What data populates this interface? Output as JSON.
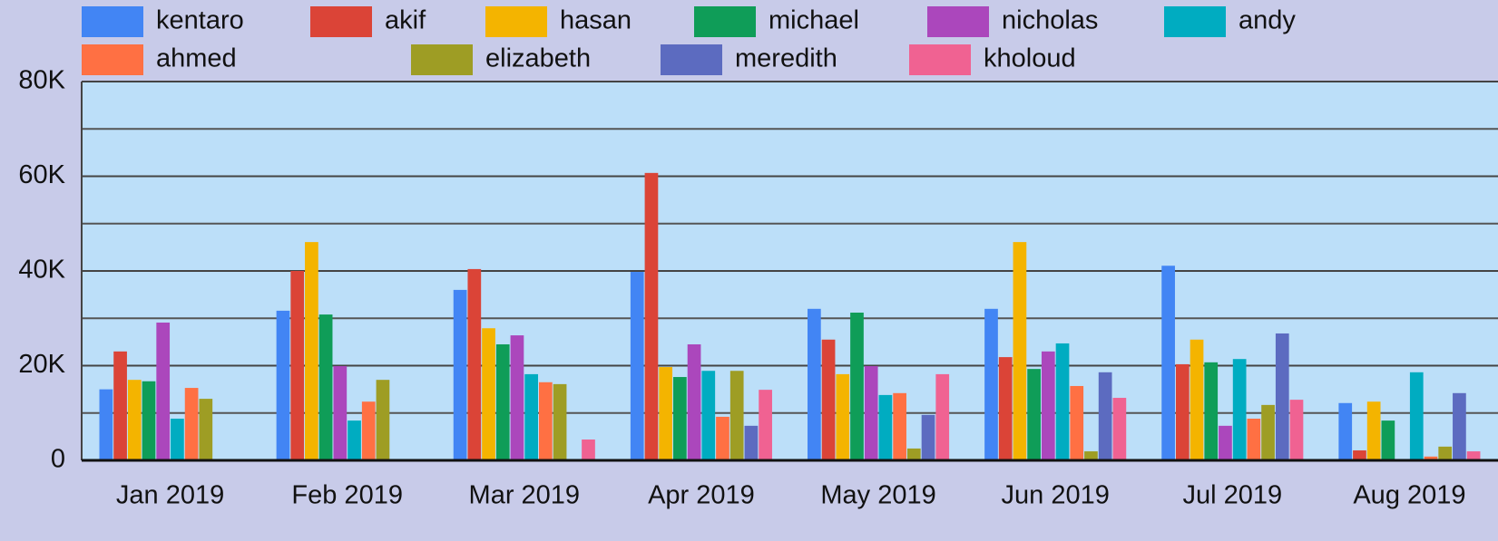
{
  "chart_data": {
    "type": "bar",
    "categories": [
      "Jan 2019",
      "Feb 2019",
      "Mar 2019",
      "Apr 2019",
      "May 2019",
      "Jun 2019",
      "Jul 2019",
      "Aug 2019"
    ],
    "series": [
      {
        "name": "kentaro",
        "color": "#4285f4",
        "values": [
          15000,
          31600,
          36000,
          39800,
          32000,
          32000,
          41100,
          12100
        ]
      },
      {
        "name": "akif",
        "color": "#db4437",
        "values": [
          23000,
          40000,
          40400,
          60700,
          25500,
          21800,
          20300,
          2100
        ]
      },
      {
        "name": "hasan",
        "color": "#f4b400",
        "values": [
          17000,
          46100,
          27900,
          19700,
          18200,
          46100,
          25500,
          12400
        ]
      },
      {
        "name": "michael",
        "color": "#0f9d58",
        "values": [
          16700,
          30800,
          24500,
          17600,
          31200,
          19300,
          20700,
          8400
        ]
      },
      {
        "name": "nicholas",
        "color": "#ab47bc",
        "values": [
          29100,
          19900,
          26400,
          24500,
          19900,
          23000,
          7300,
          0
        ]
      },
      {
        "name": "andy",
        "color": "#00acc1",
        "values": [
          8800,
          8400,
          18200,
          18900,
          13800,
          24700,
          21400,
          18600
        ]
      },
      {
        "name": "ahmed",
        "color": "#ff7043",
        "values": [
          15300,
          12400,
          16500,
          9200,
          14200,
          15700,
          8800,
          800
        ]
      },
      {
        "name": "elizabeth",
        "color": "#9e9d24",
        "values": [
          13000,
          17000,
          16100,
          18900,
          2500,
          1900,
          11700,
          2900
        ]
      },
      {
        "name": "meredith",
        "color": "#5c6bc0",
        "values": [
          0,
          0,
          0,
          7300,
          9600,
          18600,
          26800,
          14200
        ]
      },
      {
        "name": "kholoud",
        "color": "#f06292",
        "values": [
          0,
          0,
          4400,
          14900,
          18200,
          13200,
          12800,
          1900
        ]
      }
    ],
    "ylim": [
      0,
      80000
    ],
    "yticks": [
      0,
      {
        "value": 20000,
        "label": "20K"
      },
      {
        "value": 40000,
        "label": "40K"
      },
      {
        "value": 60000,
        "label": "60K"
      },
      {
        "value": 80000,
        "label": "80K"
      }
    ],
    "minor_yticks": [
      10000,
      30000,
      50000,
      70000
    ],
    "grid": true
  }
}
